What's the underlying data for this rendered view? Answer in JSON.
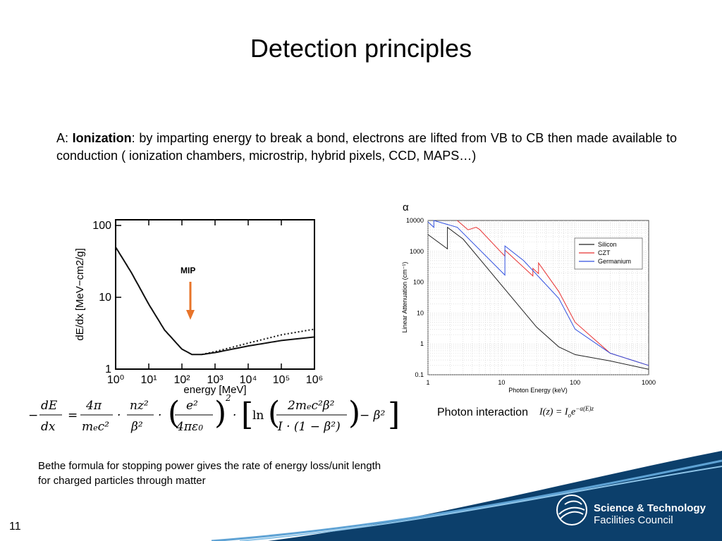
{
  "slide": {
    "title": "Detection principles",
    "paragraph_prefix": "A: ",
    "paragraph_bold": "Ionization",
    "paragraph_text": ": by imparting energy to break a bond, electrons are lifted from VB to CB then made available to conduction ( ionization chambers, microstrip, hybrid pixels, CCD, MAPS…)",
    "caption_line1": "Bethe formula for stopping power gives the rate of energy loss/unit length",
    "caption_line2": "for charged particles through matter",
    "photon_label": "Photon interaction",
    "alpha_label": "α",
    "slide_number": "11",
    "logo_line1": "Science & Technology",
    "logo_line2": "Facilities Council",
    "mip_label": "MIP"
  },
  "chart_data": [
    {
      "type": "line",
      "ylabel": "dE/dx [MeV−cm2/g]",
      "xlabel": "energy [MeV]",
      "x_ticks": [
        "10⁰",
        "10¹",
        "10²",
        "10³",
        "10⁴",
        "10⁵",
        "10⁶"
      ],
      "y_ticks": [
        "100",
        "10",
        "1"
      ],
      "xscale": "log",
      "yscale": "log",
      "xlim": [
        1,
        1000000
      ],
      "ylim": [
        1,
        120
      ],
      "annotation": "MIP",
      "series": [
        {
          "style": "solid",
          "x": [
            1,
            3,
            10,
            30,
            100,
            200,
            400,
            1000,
            10000,
            100000,
            1000000
          ],
          "y": [
            50,
            22,
            8,
            3.5,
            1.9,
            1.6,
            1.6,
            1.7,
            2.1,
            2.5,
            2.8
          ]
        },
        {
          "style": "dotted",
          "x": [
            400,
            1000,
            10000,
            100000,
            1000000
          ],
          "y": [
            1.6,
            1.75,
            2.3,
            3.0,
            3.6
          ]
        }
      ]
    },
    {
      "type": "line",
      "xlabel": "Photon Energy (keV)",
      "ylabel": "Linear Attenuation (cm⁻¹)",
      "xscale": "log",
      "yscale": "log",
      "xlim": [
        1,
        1000
      ],
      "ylim": [
        0.1,
        10000
      ],
      "x_ticks": [
        "1",
        "10",
        "100",
        "1000"
      ],
      "y_ticks": [
        "10000",
        "1000",
        "100",
        "10",
        "1",
        "0.1"
      ],
      "legend": "top-right",
      "series": [
        {
          "name": "Silicon",
          "color": "#222222",
          "x": [
            1,
            1.84,
            1.84,
            3,
            10,
            30,
            60,
            100,
            300,
            1000
          ],
          "y": [
            3500,
            1200,
            6000,
            2500,
            80,
            3.5,
            0.8,
            0.45,
            0.28,
            0.15
          ]
        },
        {
          "name": "CZT",
          "color": "#e83030",
          "x": [
            2.5,
            3.5,
            4.5,
            5,
            9.6,
            11.1,
            11.1,
            26.7,
            26.7,
            31.8,
            31.8,
            60,
            100,
            300,
            1000
          ],
          "y": [
            12000,
            5000,
            6000,
            5200,
            1000,
            700,
            1100,
            160,
            280,
            190,
            420,
            50,
            5,
            0.5,
            0.2
          ]
        },
        {
          "name": "Germanium",
          "color": "#3050e0",
          "x": [
            1,
            1.2,
            1.2,
            2.5,
            11.1,
            11.1,
            20,
            60,
            100,
            300,
            1000
          ],
          "y": [
            9000,
            6000,
            10000,
            6000,
            170,
            1500,
            500,
            30,
            3,
            0.5,
            0.2
          ]
        }
      ]
    }
  ]
}
